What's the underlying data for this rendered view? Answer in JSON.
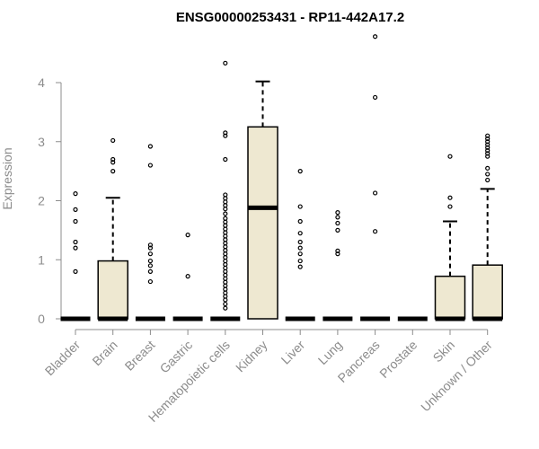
{
  "chart_data": {
    "type": "box",
    "title": "ENSG00000253431 - RP11-442A17.2",
    "ylabel": "Expression",
    "xlabel": "",
    "ylim": [
      0,
      4.9
    ],
    "yticks": [
      0,
      1,
      2,
      3,
      4
    ],
    "grid": false,
    "box_fill": "#EEE8D1",
    "box_stroke": "#000000",
    "categories": [
      "Bladder",
      "Brain",
      "Breast",
      "Gastric",
      "Hematopoietic cells",
      "Kidney",
      "Liver",
      "Lung",
      "Pancreas",
      "Prostate",
      "Skin",
      "Unknown / Other"
    ],
    "boxes": [
      {
        "q1": 0,
        "median": 0,
        "q3": 0,
        "whisker_low": 0,
        "whisker_high": 0,
        "outliers": [
          0.8,
          1.2,
          1.3,
          1.65,
          1.85,
          2.12
        ]
      },
      {
        "q1": 0,
        "median": 0,
        "q3": 0.98,
        "whisker_low": 0,
        "whisker_high": 2.05,
        "outliers": [
          2.5,
          2.65,
          2.7,
          3.02
        ]
      },
      {
        "q1": 0,
        "median": 0,
        "q3": 0,
        "whisker_low": 0,
        "whisker_high": 0,
        "outliers": [
          0.63,
          0.8,
          0.9,
          0.98,
          1.1,
          1.2,
          1.25,
          2.6,
          2.92
        ]
      },
      {
        "q1": 0,
        "median": 0,
        "q3": 0,
        "whisker_low": 0,
        "whisker_high": 0,
        "outliers": [
          0.72,
          1.42
        ]
      },
      {
        "q1": 0,
        "median": 0,
        "q3": 0,
        "whisker_low": 0,
        "whisker_high": 0,
        "outliers": [
          0.18,
          0.25,
          0.32,
          0.38,
          0.44,
          0.5,
          0.56,
          0.62,
          0.68,
          0.74,
          0.8,
          0.86,
          0.92,
          0.98,
          1.04,
          1.1,
          1.16,
          1.22,
          1.28,
          1.34,
          1.4,
          1.46,
          1.52,
          1.58,
          1.64,
          1.7,
          1.78,
          1.86,
          1.92,
          1.98,
          2.04,
          2.1,
          2.7,
          3.1,
          3.15,
          4.33
        ]
      },
      {
        "q1": 0,
        "median": 1.88,
        "q3": 3.25,
        "whisker_low": 0,
        "whisker_high": 4.02,
        "outliers": []
      },
      {
        "q1": 0,
        "median": 0,
        "q3": 0,
        "whisker_low": 0,
        "whisker_high": 0,
        "outliers": [
          0.88,
          0.98,
          1.1,
          1.2,
          1.3,
          1.45,
          1.65,
          1.9,
          2.5
        ]
      },
      {
        "q1": 0,
        "median": 0,
        "q3": 0,
        "whisker_low": 0,
        "whisker_high": 0,
        "outliers": [
          1.1,
          1.15,
          1.5,
          1.62,
          1.72,
          1.8
        ]
      },
      {
        "q1": 0,
        "median": 0,
        "q3": 0,
        "whisker_low": 0,
        "whisker_high": 0,
        "outliers": [
          1.48,
          2.13,
          3.75,
          4.78
        ]
      },
      {
        "q1": 0,
        "median": 0,
        "q3": 0,
        "whisker_low": 0,
        "whisker_high": 0,
        "outliers": []
      },
      {
        "q1": 0,
        "median": 0,
        "q3": 0.72,
        "whisker_low": 0,
        "whisker_high": 1.65,
        "outliers": [
          1.9,
          2.05,
          2.75
        ]
      },
      {
        "q1": 0,
        "median": 0,
        "q3": 0.91,
        "whisker_low": 0,
        "whisker_high": 2.2,
        "outliers": [
          2.35,
          2.45,
          2.55,
          2.75,
          2.8,
          2.85,
          2.9,
          2.95,
          3.0,
          3.05,
          3.1
        ]
      }
    ]
  }
}
